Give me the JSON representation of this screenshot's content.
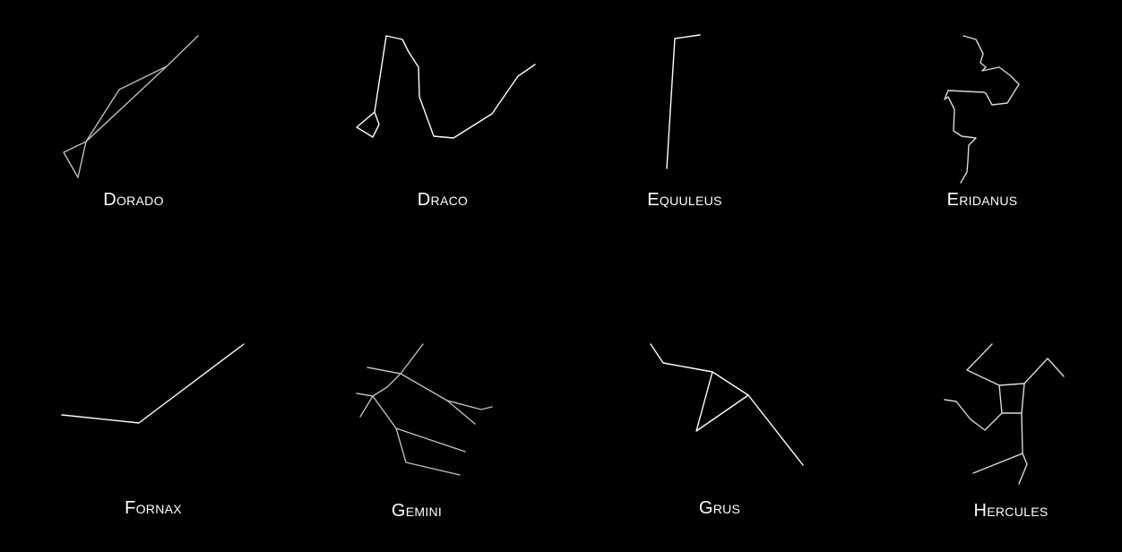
{
  "constellations": [
    {
      "name": "Dorado",
      "stroke": "#bdbdbd"
    },
    {
      "name": "Draco",
      "stroke": "#ffffff"
    },
    {
      "name": "Equuleus",
      "stroke": "#ffffff"
    },
    {
      "name": "Eridanus",
      "stroke": "#d9d9d9"
    },
    {
      "name": "Fornax",
      "stroke": "#ffffff"
    },
    {
      "name": "Gemini",
      "stroke": "#bdbdbd"
    },
    {
      "name": "Grus",
      "stroke": "#ffffff"
    },
    {
      "name": "Hercules",
      "stroke": "#d9d9d9"
    }
  ]
}
